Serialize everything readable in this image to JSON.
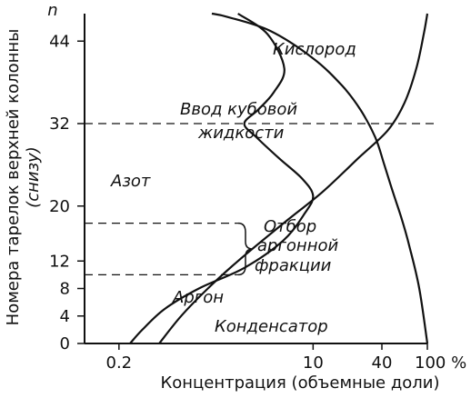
{
  "chart_data": {
    "type": "line",
    "title": "",
    "xlabel": "Концентрация (объемные доли)",
    "ylabel_line1": "Номера тарелок верхней колонны",
    "ylabel_line2": "(снизу)",
    "x_scale": "log",
    "xlim": [
      0.1,
      100
    ],
    "ylim": [
      0,
      48
    ],
    "grid": false,
    "x_ticks": [
      {
        "value": 0.2,
        "label": "0.2"
      },
      {
        "value": 10,
        "label": "10"
      },
      {
        "value": 40,
        "label": "40"
      },
      {
        "value": 100,
        "label": "100 %"
      }
    ],
    "y_ticks": [
      {
        "value": 0,
        "label": "0"
      },
      {
        "value": 4,
        "label": "4"
      },
      {
        "value": 8,
        "label": "8"
      },
      {
        "value": 12,
        "label": "12"
      },
      {
        "value": 20,
        "label": "20"
      },
      {
        "value": 32,
        "label": "32"
      },
      {
        "value": 44,
        "label": "44"
      }
    ],
    "y_axis_symbol": "n",
    "series": [
      {
        "name": "Кислород",
        "points": [
          [
            0.45,
            0
          ],
          [
            0.7,
            4
          ],
          [
            1.2,
            8
          ],
          [
            2.2,
            12
          ],
          [
            6,
            18
          ],
          [
            12,
            22
          ],
          [
            25,
            27
          ],
          [
            45,
            31
          ],
          [
            63,
            35
          ],
          [
            80,
            40
          ],
          [
            93,
            45
          ],
          [
            100,
            48
          ]
        ]
      },
      {
        "name": "Азот",
        "points": [
          [
            100,
            0
          ],
          [
            85,
            8
          ],
          [
            70,
            14
          ],
          [
            60,
            18
          ],
          [
            50,
            22
          ],
          [
            42,
            26
          ],
          [
            35,
            30
          ],
          [
            26,
            34
          ],
          [
            18,
            37.5
          ],
          [
            10,
            41.5
          ],
          [
            4.2,
            45.5
          ],
          [
            1.8,
            47.5
          ],
          [
            1.3,
            48
          ]
        ]
      },
      {
        "name": "Аргон",
        "points": [
          [
            0.25,
            0
          ],
          [
            0.32,
            2
          ],
          [
            0.5,
            5
          ],
          [
            1,
            8
          ],
          [
            2.5,
            11
          ],
          [
            5.5,
            15
          ],
          [
            8.5,
            19
          ],
          [
            10,
            21.5
          ],
          [
            8,
            24
          ],
          [
            5,
            27
          ],
          [
            3.2,
            30
          ],
          [
            2.5,
            32
          ],
          [
            3.3,
            34
          ],
          [
            4.5,
            36.5
          ],
          [
            5.6,
            40
          ],
          [
            4,
            45
          ],
          [
            2.2,
            48
          ]
        ]
      }
    ],
    "reference_lines": [
      {
        "name": "Ввод кубовой жидкости",
        "n": 32
      },
      {
        "name": "Отбор аргонной фракции (верх)",
        "n": 17.5
      },
      {
        "name": "Отбор аргонной фракции (низ)",
        "n": 10
      }
    ],
    "annotations": [
      {
        "id": "oxygen",
        "text": "Кислород"
      },
      {
        "id": "feed1",
        "text": "Ввод кубовой"
      },
      {
        "id": "feed2",
        "text": "жидкости"
      },
      {
        "id": "nitrogen",
        "text": "Азот"
      },
      {
        "id": "draw1",
        "text": "Отбор"
      },
      {
        "id": "draw2",
        "text": "аргонной"
      },
      {
        "id": "draw3",
        "text": "фракции"
      },
      {
        "id": "argon",
        "text": "Аргон"
      },
      {
        "id": "condenser",
        "text": "Конденсатор"
      }
    ]
  }
}
